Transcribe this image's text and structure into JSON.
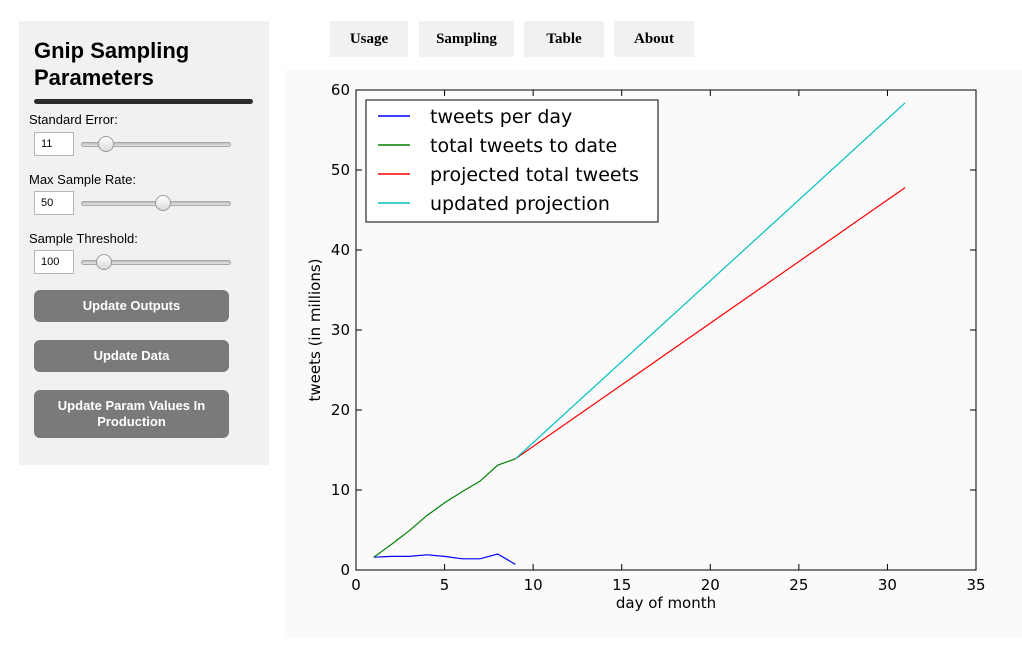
{
  "sidebar": {
    "title": "Gnip Sampling Parameters",
    "params": [
      {
        "label": "Standard Error:",
        "value": "11",
        "slider_fraction": 0.13
      },
      {
        "label": "Max Sample Rate:",
        "value": "50",
        "slider_fraction": 0.55
      },
      {
        "label": "Sample Threshold:",
        "value": "100",
        "slider_fraction": 0.11
      }
    ],
    "buttons": {
      "update_outputs": "Update Outputs",
      "update_data": "Update Data",
      "update_production": "Update Param Values In Production"
    }
  },
  "tabs": [
    {
      "label": "Usage",
      "active": true
    },
    {
      "label": "Sampling",
      "active": false
    },
    {
      "label": "Table",
      "active": false
    },
    {
      "label": "About",
      "active": false
    }
  ],
  "chart_data": {
    "type": "line",
    "xlabel": "day of month",
    "ylabel": "tweets (in millions)",
    "xlim": [
      0,
      35
    ],
    "ylim": [
      0,
      60
    ],
    "xticks": [
      0,
      5,
      10,
      15,
      20,
      25,
      30,
      35
    ],
    "yticks": [
      0,
      10,
      20,
      30,
      40,
      50,
      60
    ],
    "legend_position": "top-left",
    "grid": false,
    "series": [
      {
        "name": "tweets per day",
        "color": "#0000ff",
        "x": [
          1,
          2,
          3,
          4,
          5,
          6,
          7,
          8,
          9
        ],
        "y": [
          1.6,
          1.7,
          1.7,
          1.9,
          1.7,
          1.4,
          1.4,
          2.0,
          0.7
        ]
      },
      {
        "name": "total tweets to date",
        "color": "#008000",
        "x": [
          1,
          2,
          3,
          4,
          5,
          6,
          7,
          8,
          9
        ],
        "y": [
          1.6,
          3.2,
          4.9,
          6.8,
          8.4,
          9.8,
          11.1,
          13.1,
          13.9
        ]
      },
      {
        "name": "projected total tweets",
        "color": "#ff0000",
        "x": [
          9,
          31
        ],
        "y": [
          13.9,
          47.8
        ]
      },
      {
        "name": "updated projection",
        "color": "#00bfbf",
        "x": [
          9,
          31
        ],
        "y": [
          13.9,
          58.4
        ]
      }
    ]
  }
}
